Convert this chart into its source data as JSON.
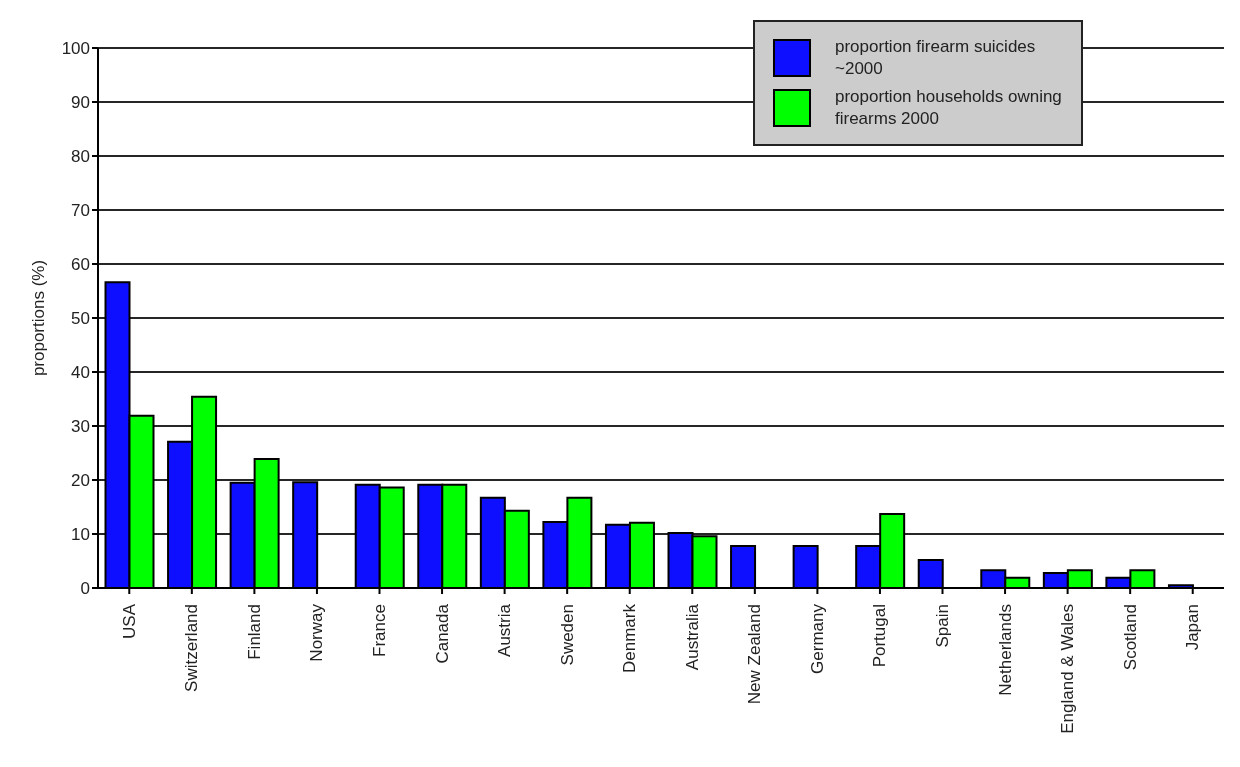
{
  "chart_data": {
    "type": "bar",
    "ylabel": "proportions (%)",
    "categories": [
      "USA",
      "Switzerland",
      "Finland",
      "Norway",
      "France",
      "Canada",
      "Austria",
      "Sweden",
      "Denmark",
      "Australia",
      "New Zealand",
      "Germany",
      "Portugal",
      "Spain",
      "Netherlands",
      "England & Wales",
      "Scotland",
      "Japan"
    ],
    "series": [
      {
        "name": "proportion firearm suicides ~2000",
        "color": "#0f0fff",
        "values": [
          56.6,
          27.1,
          19.5,
          19.6,
          19.1,
          19.1,
          16.7,
          12.2,
          11.7,
          10.2,
          7.8,
          7.8,
          7.8,
          5.2,
          3.3,
          2.8,
          1.9,
          0.5
        ]
      },
      {
        "name": "proportion households owning firearms 2000",
        "color": "#00ff00",
        "values": [
          31.9,
          35.4,
          23.9,
          null,
          18.6,
          19.1,
          14.3,
          16.7,
          12.1,
          9.6,
          null,
          null,
          13.7,
          null,
          1.9,
          3.3,
          3.3,
          null
        ]
      }
    ],
    "ylim": [
      0,
      100
    ],
    "yticks": [
      0,
      10,
      20,
      30,
      40,
      50,
      60,
      70,
      80,
      90,
      100
    ],
    "grid": "y",
    "legend": "top right"
  }
}
